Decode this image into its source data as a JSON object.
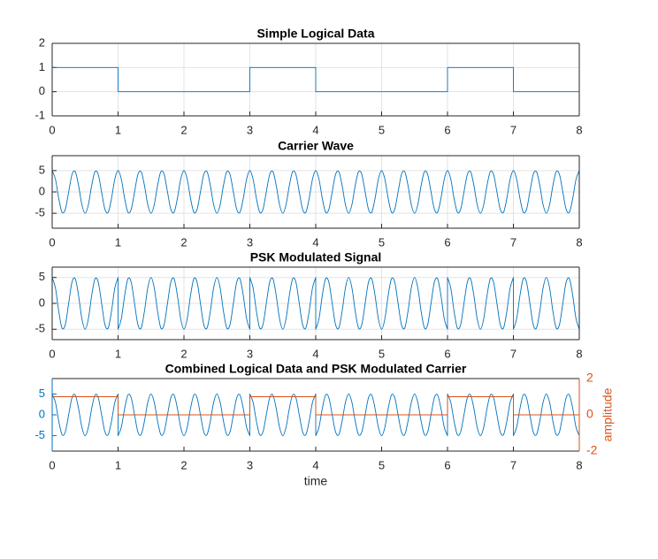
{
  "chart_data": [
    {
      "type": "line",
      "title": "Simple Logical Data",
      "color": "#0072bd",
      "grid": true,
      "x": [
        0,
        1,
        1,
        3,
        3,
        4,
        4,
        6,
        6,
        7,
        7,
        8
      ],
      "values": [
        1,
        1,
        0,
        0,
        1,
        1,
        0,
        0,
        1,
        1,
        0,
        0
      ],
      "xlim": [
        0,
        8
      ],
      "xticks": [
        0,
        1,
        2,
        3,
        4,
        5,
        6,
        7,
        8
      ],
      "ylim": [
        -1,
        2
      ],
      "yticks": [
        -1,
        0,
        1,
        2
      ]
    },
    {
      "type": "line",
      "title": "Carrier Wave",
      "color": "#0072bd",
      "grid": true,
      "x": [
        0,
        0.05,
        0.1,
        0.15,
        0.2,
        0.25,
        0.3,
        0.35,
        0.4,
        0.45,
        0.5,
        0.55,
        0.6,
        0.65,
        0.7,
        0.75,
        0.8,
        0.85,
        0.9,
        0.95,
        1,
        1.05,
        1.1,
        1.15,
        1.2,
        1.25,
        1.3,
        1.35,
        1.4,
        1.45,
        1.5,
        1.55,
        1.6,
        1.65,
        1.7,
        1.75,
        1.8,
        1.85,
        1.9,
        1.95,
        2,
        2.05,
        2.1,
        2.15,
        2.2,
        2.25,
        2.3,
        2.35,
        2.4,
        2.45,
        2.5,
        2.55,
        2.6,
        2.65,
        2.7,
        2.75,
        2.8,
        2.85,
        2.9,
        2.95,
        3,
        3.05,
        3.1,
        3.15,
        3.2,
        3.25,
        3.3,
        3.35,
        3.4,
        3.45,
        3.5,
        3.55,
        3.6,
        3.65,
        3.7,
        3.75,
        3.8,
        3.85,
        3.9,
        3.95,
        4,
        4.05,
        4.1,
        4.15,
        4.2,
        4.25,
        4.3,
        4.35,
        4.4,
        4.45,
        4.5,
        4.55,
        4.6,
        4.65,
        4.7,
        4.75,
        4.8,
        4.85,
        4.9,
        4.95,
        5,
        5.05,
        5.1,
        5.15,
        5.2,
        5.25,
        5.3,
        5.35,
        5.4,
        5.45,
        5.5,
        5.55,
        5.6,
        5.65,
        5.7,
        5.75,
        5.8,
        5.85,
        5.9,
        5.95,
        6,
        6.05,
        6.1,
        6.15,
        6.2,
        6.25,
        6.3,
        6.35,
        6.4,
        6.45,
        6.5,
        6.55,
        6.6,
        6.65,
        6.7,
        6.75,
        6.8,
        6.85,
        6.9,
        6.95,
        7,
        7.05,
        7.1,
        7.15,
        7.2,
        7.25,
        7.3,
        7.35,
        7.4,
        7.45,
        7.5,
        7.55,
        7.6,
        7.65,
        7.7,
        7.75,
        7.8,
        7.85,
        7.9,
        7.95,
        8
      ],
      "values": [
        5,
        2.94,
        -1.55,
        -4.76,
        -4.05,
        0,
        4.05,
        4.76,
        1.55,
        -2.94,
        -5,
        -2.94,
        1.55,
        4.76,
        4.05,
        0,
        -4.05,
        -4.76,
        -1.55,
        2.94,
        5,
        2.94,
        -1.55,
        -4.76,
        -4.05,
        0,
        4.05,
        4.76,
        1.55,
        -2.94,
        -5,
        -2.94,
        1.55,
        4.76,
        4.05,
        0,
        -4.05,
        -4.76,
        -1.55,
        2.94,
        5,
        2.94,
        -1.55,
        -4.76,
        -4.05,
        0,
        4.05,
        4.76,
        1.55,
        -2.94,
        -5,
        -2.94,
        1.55,
        4.76,
        4.05,
        0,
        -4.05,
        -4.76,
        -1.55,
        2.94,
        5,
        2.94,
        -1.55,
        -4.76,
        -4.05,
        0,
        4.05,
        4.76,
        1.55,
        -2.94,
        -5,
        -2.94,
        1.55,
        4.76,
        4.05,
        0,
        -4.05,
        -4.76,
        -1.55,
        2.94,
        5,
        2.94,
        -1.55,
        -4.76,
        -4.05,
        0,
        4.05,
        4.76,
        1.55,
        -2.94,
        -5,
        -2.94,
        1.55,
        4.76,
        4.05,
        0,
        -4.05,
        -4.76,
        -1.55,
        2.94,
        5,
        2.94,
        -1.55,
        -4.76,
        -4.05,
        0,
        4.05,
        4.76,
        1.55,
        -2.94,
        -5,
        -2.94,
        1.55,
        4.76,
        4.05,
        0,
        -4.05,
        -4.76,
        -1.55,
        2.94,
        5,
        2.94,
        -1.55,
        -4.76,
        -4.05,
        0,
        4.05,
        4.76,
        1.55,
        -2.94,
        -5,
        -2.94,
        1.55,
        4.76,
        4.05,
        0,
        -4.05,
        -4.76,
        -1.55,
        2.94,
        5,
        2.94,
        -1.55,
        -4.76,
        -4.05,
        0,
        4.05,
        4.76,
        1.55,
        -2.94,
        -5,
        -2.94,
        1.55,
        4.76,
        4.05,
        0,
        -4.05,
        -4.76,
        -1.55,
        2.94,
        5
      ],
      "xlim": [
        0,
        8
      ],
      "xticks": [
        0,
        1,
        2,
        3,
        4,
        5,
        6,
        7,
        8
      ],
      "ylim": [
        -8.5,
        8.5
      ],
      "yticks": [
        -5,
        0,
        5
      ]
    },
    {
      "type": "line",
      "title": "PSK Modulated Signal",
      "color": "#0072bd",
      "grid": true,
      "x": [
        0,
        0.05,
        0.1,
        0.15,
        0.2,
        0.25,
        0.3,
        0.35,
        0.4,
        0.45,
        0.5,
        0.55,
        0.6,
        0.65,
        0.7,
        0.75,
        0.8,
        0.85,
        0.9,
        0.95,
        1,
        1,
        1.05,
        1.1,
        1.15,
        1.2,
        1.25,
        1.3,
        1.35,
        1.4,
        1.45,
        1.5,
        1.55,
        1.6,
        1.65,
        1.7,
        1.75,
        1.8,
        1.85,
        1.9,
        1.95,
        2,
        2.05,
        2.1,
        2.15,
        2.2,
        2.25,
        2.3,
        2.35,
        2.4,
        2.45,
        2.5,
        2.55,
        2.6,
        2.65,
        2.7,
        2.75,
        2.8,
        2.85,
        2.9,
        2.95,
        3,
        3,
        3.05,
        3.1,
        3.15,
        3.2,
        3.25,
        3.3,
        3.35,
        3.4,
        3.45,
        3.5,
        3.55,
        3.6,
        3.65,
        3.7,
        3.75,
        3.8,
        3.85,
        3.9,
        3.95,
        4,
        4,
        4.05,
        4.1,
        4.15,
        4.2,
        4.25,
        4.3,
        4.35,
        4.4,
        4.45,
        4.5,
        4.55,
        4.6,
        4.65,
        4.7,
        4.75,
        4.8,
        4.85,
        4.9,
        4.95,
        5,
        5.05,
        5.1,
        5.15,
        5.2,
        5.25,
        5.3,
        5.35,
        5.4,
        5.45,
        5.5,
        5.55,
        5.6,
        5.65,
        5.7,
        5.75,
        5.8,
        5.85,
        5.9,
        5.95,
        6,
        6,
        6.05,
        6.1,
        6.15,
        6.2,
        6.25,
        6.3,
        6.35,
        6.4,
        6.45,
        6.5,
        6.55,
        6.6,
        6.65,
        6.7,
        6.75,
        6.8,
        6.85,
        6.9,
        6.95,
        7,
        7,
        7.05,
        7.1,
        7.15,
        7.2,
        7.25,
        7.3,
        7.35,
        7.4,
        7.45,
        7.5,
        7.55,
        7.6,
        7.65,
        7.7,
        7.75,
        7.8,
        7.85,
        7.9,
        7.95,
        8
      ],
      "values": [
        5,
        2.94,
        -1.55,
        -4.76,
        -4.05,
        0,
        4.05,
        4.76,
        1.55,
        -2.94,
        -5,
        -2.94,
        1.55,
        4.76,
        4.05,
        0,
        -4.05,
        -4.76,
        -1.55,
        2.94,
        5,
        -5,
        -2.94,
        1.55,
        4.76,
        4.05,
        0,
        -4.05,
        -4.76,
        -1.55,
        2.94,
        5,
        2.94,
        -1.55,
        -4.76,
        -4.05,
        0,
        4.05,
        4.76,
        1.55,
        -2.94,
        -5,
        -2.94,
        1.55,
        4.76,
        4.05,
        0,
        -4.05,
        -4.76,
        -1.55,
        2.94,
        5,
        2.94,
        -1.55,
        -4.76,
        -4.05,
        0,
        4.05,
        4.76,
        1.55,
        -2.94,
        -5,
        5,
        2.94,
        -1.55,
        -4.76,
        -4.05,
        0,
        4.05,
        4.76,
        1.55,
        -2.94,
        -5,
        -2.94,
        1.55,
        4.76,
        4.05,
        0,
        -4.05,
        -4.76,
        -1.55,
        2.94,
        5,
        -5,
        -2.94,
        1.55,
        4.76,
        4.05,
        0,
        -4.05,
        -4.76,
        -1.55,
        2.94,
        5,
        2.94,
        -1.55,
        -4.76,
        -4.05,
        0,
        4.05,
        4.76,
        1.55,
        -2.94,
        -5,
        -2.94,
        1.55,
        4.76,
        4.05,
        0,
        -4.05,
        -4.76,
        -1.55,
        2.94,
        5,
        2.94,
        -1.55,
        -4.76,
        -4.05,
        0,
        4.05,
        4.76,
        1.55,
        -2.94,
        -5,
        5,
        2.94,
        -1.55,
        -4.76,
        -4.05,
        0,
        4.05,
        4.76,
        1.55,
        -2.94,
        -5,
        -2.94,
        1.55,
        4.76,
        4.05,
        0,
        -4.05,
        -4.76,
        -1.55,
        2.94,
        5,
        -5,
        -2.94,
        1.55,
        4.76,
        4.05,
        0,
        -4.05,
        -4.76,
        -1.55,
        2.94,
        5,
        2.94,
        -1.55,
        -4.76,
        -4.05,
        0,
        4.05,
        4.76,
        1.55,
        -2.94,
        -5
      ],
      "xlim": [
        0,
        8
      ],
      "xticks": [
        0,
        1,
        2,
        3,
        4,
        5,
        6,
        7,
        8
      ],
      "ylim": [
        -7,
        7
      ],
      "yticks": [
        -5,
        0,
        5
      ]
    },
    {
      "type": "line",
      "title": "Combined Logical Data and PSK Modulated Carrier",
      "xlabel": "time",
      "y2label": "amplitude",
      "grid": false,
      "series": [
        {
          "color": "#0072bd",
          "x": [
            0,
            0.05,
            0.1,
            0.15,
            0.2,
            0.25,
            0.3,
            0.35,
            0.4,
            0.45,
            0.5,
            0.55,
            0.6,
            0.65,
            0.7,
            0.75,
            0.8,
            0.85,
            0.9,
            0.95,
            1,
            1,
            1.05,
            1.1,
            1.15,
            1.2,
            1.25,
            1.3,
            1.35,
            1.4,
            1.45,
            1.5,
            1.55,
            1.6,
            1.65,
            1.7,
            1.75,
            1.8,
            1.85,
            1.9,
            1.95,
            2,
            2.05,
            2.1,
            2.15,
            2.2,
            2.25,
            2.3,
            2.35,
            2.4,
            2.45,
            2.5,
            2.55,
            2.6,
            2.65,
            2.7,
            2.75,
            2.8,
            2.85,
            2.9,
            2.95,
            3,
            3,
            3.05,
            3.1,
            3.15,
            3.2,
            3.25,
            3.3,
            3.35,
            3.4,
            3.45,
            3.5,
            3.55,
            3.6,
            3.65,
            3.7,
            3.75,
            3.8,
            3.85,
            3.9,
            3.95,
            4,
            4,
            4.05,
            4.1,
            4.15,
            4.2,
            4.25,
            4.3,
            4.35,
            4.4,
            4.45,
            4.5,
            4.55,
            4.6,
            4.65,
            4.7,
            4.75,
            4.8,
            4.85,
            4.9,
            4.95,
            5,
            5.05,
            5.1,
            5.15,
            5.2,
            5.25,
            5.3,
            5.35,
            5.4,
            5.45,
            5.5,
            5.55,
            5.6,
            5.65,
            5.7,
            5.75,
            5.8,
            5.85,
            5.9,
            5.95,
            6,
            6,
            6.05,
            6.1,
            6.15,
            6.2,
            6.25,
            6.3,
            6.35,
            6.4,
            6.45,
            6.5,
            6.55,
            6.6,
            6.65,
            6.7,
            6.75,
            6.8,
            6.85,
            6.9,
            6.95,
            7,
            7,
            7.05,
            7.1,
            7.15,
            7.2,
            7.25,
            7.3,
            7.35,
            7.4,
            7.45,
            7.5,
            7.55,
            7.6,
            7.65,
            7.7,
            7.75,
            7.8,
            7.85,
            7.9,
            7.95,
            8
          ],
          "values": [
            5,
            2.94,
            -1.55,
            -4.76,
            -4.05,
            0,
            4.05,
            4.76,
            1.55,
            -2.94,
            -5,
            -2.94,
            1.55,
            4.76,
            4.05,
            0,
            -4.05,
            -4.76,
            -1.55,
            2.94,
            5,
            -5,
            -2.94,
            1.55,
            4.76,
            4.05,
            0,
            -4.05,
            -4.76,
            -1.55,
            2.94,
            5,
            2.94,
            -1.55,
            -4.76,
            -4.05,
            0,
            4.05,
            4.76,
            1.55,
            -2.94,
            -5,
            -2.94,
            1.55,
            4.76,
            4.05,
            0,
            -4.05,
            -4.76,
            -1.55,
            2.94,
            5,
            2.94,
            -1.55,
            -4.76,
            -4.05,
            0,
            4.05,
            4.76,
            1.55,
            -2.94,
            -5,
            5,
            2.94,
            -1.55,
            -4.76,
            -4.05,
            0,
            4.05,
            4.76,
            1.55,
            -2.94,
            -5,
            -2.94,
            1.55,
            4.76,
            4.05,
            0,
            -4.05,
            -4.76,
            -1.55,
            2.94,
            5,
            -5,
            -2.94,
            1.55,
            4.76,
            4.05,
            0,
            -4.05,
            -4.76,
            -1.55,
            2.94,
            5,
            2.94,
            -1.55,
            -4.76,
            -4.05,
            0,
            4.05,
            4.76,
            1.55,
            -2.94,
            -5,
            -2.94,
            1.55,
            4.76,
            4.05,
            0,
            -4.05,
            -4.76,
            -1.55,
            2.94,
            5,
            2.94,
            -1.55,
            -4.76,
            -4.05,
            0,
            4.05,
            4.76,
            1.55,
            -2.94,
            -5,
            5,
            2.94,
            -1.55,
            -4.76,
            -4.05,
            0,
            4.05,
            4.76,
            1.55,
            -2.94,
            -5,
            -2.94,
            1.55,
            4.76,
            4.05,
            0,
            -4.05,
            -4.76,
            -1.55,
            2.94,
            5,
            -5,
            -2.94,
            1.55,
            4.76,
            4.05,
            0,
            -4.05,
            -4.76,
            -1.55,
            2.94,
            5,
            2.94,
            -1.55,
            -4.76,
            -4.05,
            0,
            4.05,
            4.76,
            1.55,
            -2.94,
            -5
          ]
        },
        {
          "color": "#d95319",
          "axis": "y2",
          "x": [
            0,
            1,
            1,
            3,
            3,
            4,
            4,
            6,
            6,
            7,
            7,
            8
          ],
          "values": [
            1,
            1,
            0,
            0,
            1,
            1,
            0,
            0,
            1,
            1,
            0,
            0
          ]
        }
      ],
      "xlim": [
        0,
        8
      ],
      "xticks": [
        0,
        1,
        2,
        3,
        4,
        5,
        6,
        7,
        8
      ],
      "ylim": [
        -8.7,
        8.7
      ],
      "yticks": [
        -5,
        0,
        5
      ],
      "y2lim": [
        -2,
        2
      ],
      "y2ticks": [
        -2,
        0,
        2
      ]
    }
  ]
}
